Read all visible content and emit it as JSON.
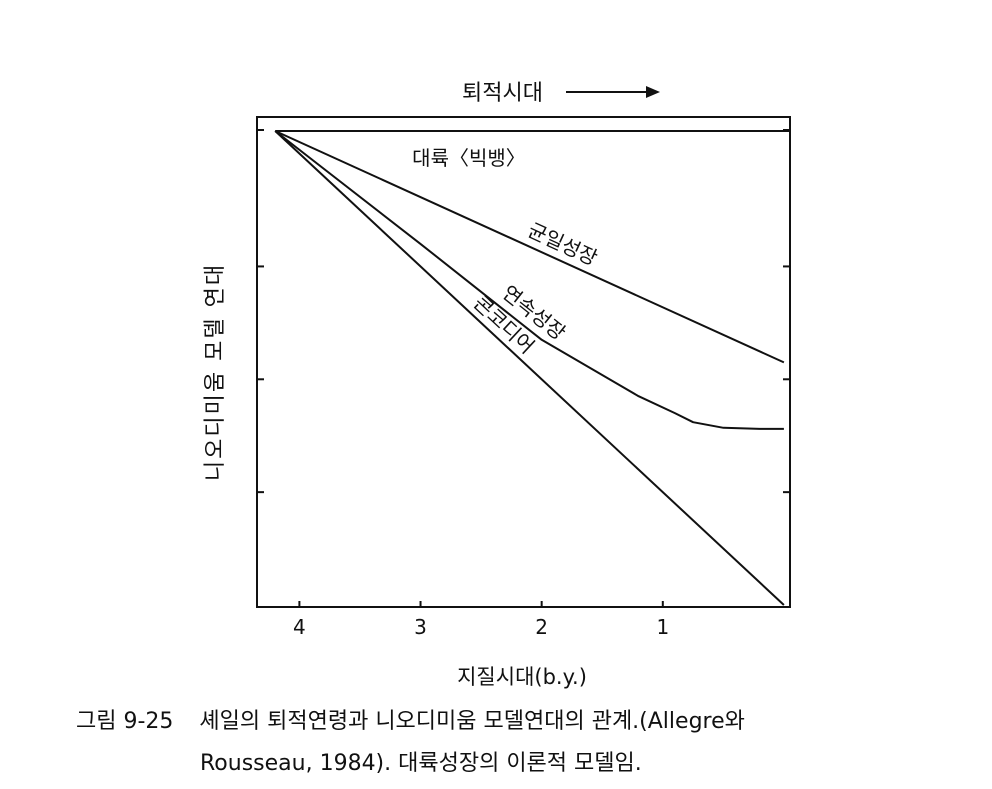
{
  "chart_data": {
    "type": "line",
    "top_label": "퇴적시대",
    "xlabel": "지질시대(b.y.)",
    "ylabel": "니오디미움 모델 연대",
    "xlim": [
      4.35,
      -0.05
    ],
    "ylim": [
      0,
      4.2
    ],
    "x_ticks": [
      4,
      3,
      2,
      1
    ],
    "x_tick_labels": [
      "4",
      "3",
      "2",
      "1"
    ],
    "y_ticks": [
      1,
      2,
      3,
      4
    ],
    "series": [
      {
        "name": "대륙〈빅뱅〉",
        "x": [
          4.2,
          -0.05
        ],
        "y": [
          4.2,
          4.2
        ]
      },
      {
        "name": "균일성장",
        "x": [
          4.2,
          0
        ],
        "y": [
          4.2,
          2.15
        ]
      },
      {
        "name": "연속성장",
        "x": [
          4.2,
          3.0,
          2.0,
          1.2,
          0.9,
          0.75,
          0.5,
          0.2,
          0
        ],
        "y": [
          4.2,
          3.2,
          2.35,
          1.85,
          1.7,
          1.62,
          1.57,
          1.56,
          1.56
        ]
      },
      {
        "name": "콘코디어",
        "x": [
          4.2,
          0
        ],
        "y": [
          4.2,
          0
        ]
      }
    ]
  },
  "caption": {
    "figure_number": "그림 9-25",
    "line1": "셰일의 퇴적연령과 니오디미움 모델연대의 관계.(Allegre와",
    "line2": "Rousseau, 1984). 대륙성장의 이론적 모델임."
  }
}
